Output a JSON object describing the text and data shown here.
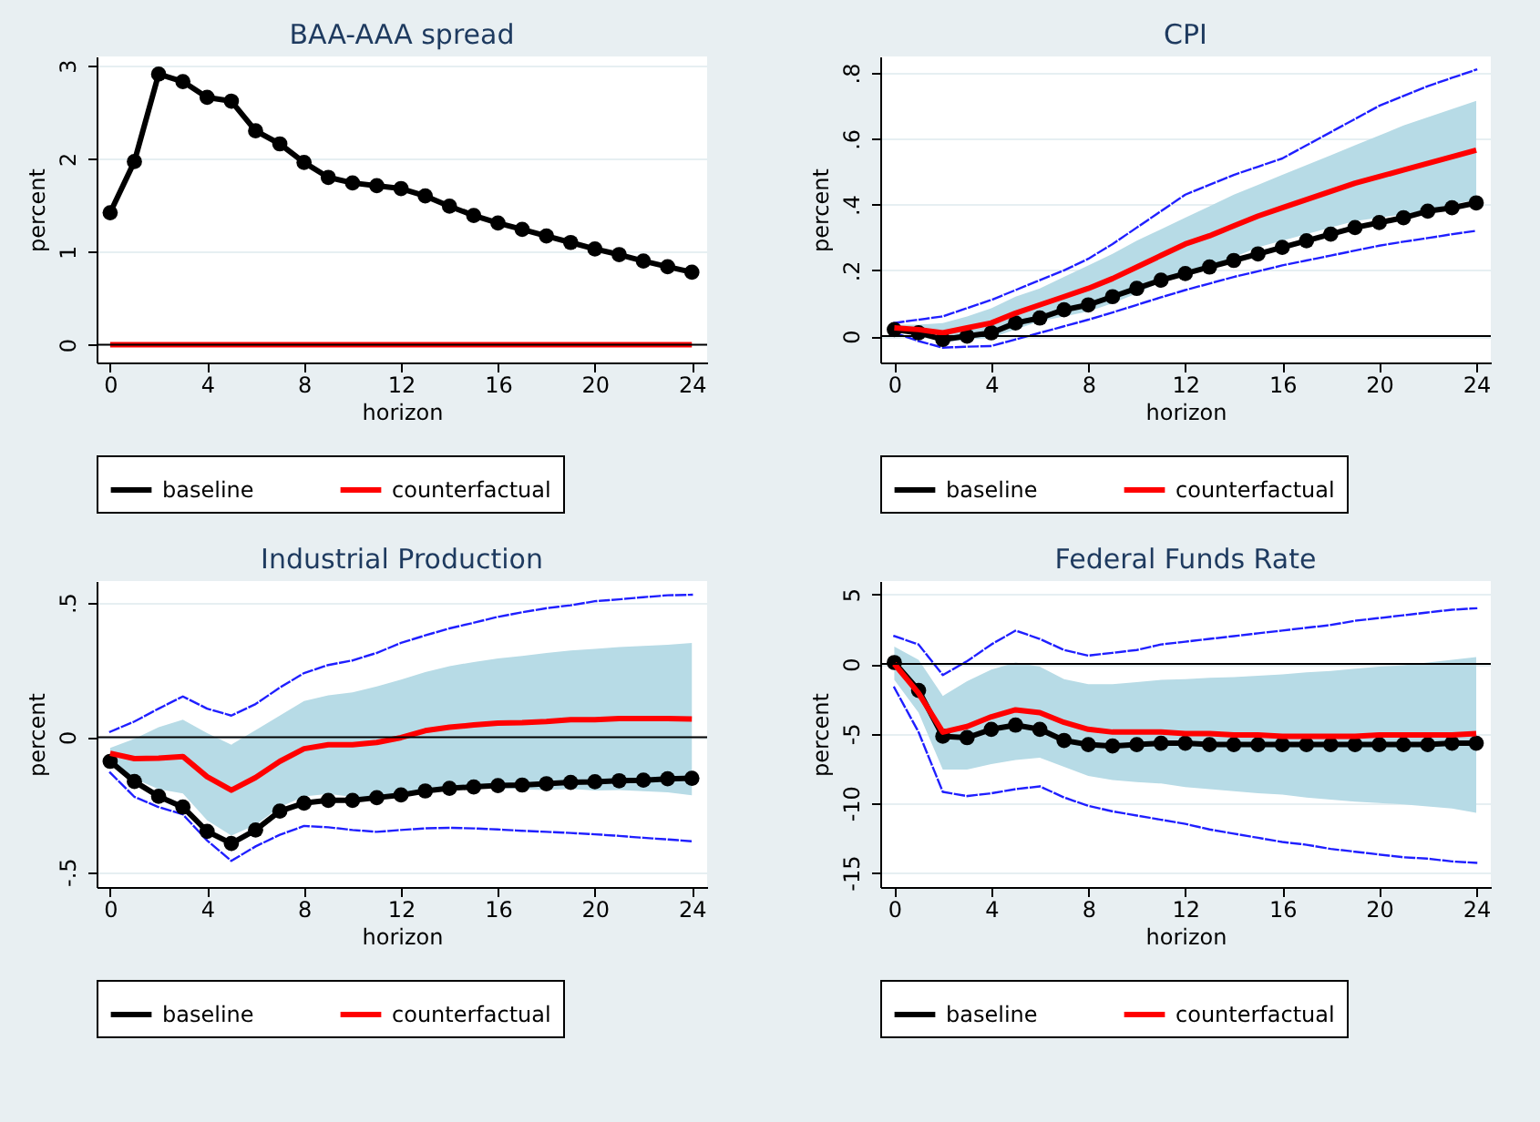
{
  "chart_data": [
    {
      "type": "line",
      "title": "BAA-AAA spread",
      "xlabel": "horizon",
      "ylabel": "percent",
      "x": [
        0,
        1,
        2,
        3,
        4,
        5,
        6,
        7,
        8,
        9,
        10,
        11,
        12,
        13,
        14,
        15,
        16,
        17,
        18,
        19,
        20,
        21,
        22,
        23,
        24
      ],
      "series": [
        {
          "name": "baseline",
          "color": "#000000",
          "marker": "circle",
          "values": [
            1.42,
            1.97,
            2.91,
            2.83,
            2.66,
            2.62,
            2.3,
            2.16,
            1.96,
            1.8,
            1.74,
            1.71,
            1.68,
            1.6,
            1.49,
            1.39,
            1.31,
            1.24,
            1.17,
            1.1,
            1.03,
            0.97,
            0.9,
            0.84,
            0.78
          ]
        },
        {
          "name": "counterfactual",
          "color": "#ff0000",
          "values": [
            0,
            0,
            0,
            0,
            0,
            0,
            0,
            0,
            0,
            0,
            0,
            0,
            0,
            0,
            0,
            0,
            0,
            0,
            0,
            0,
            0,
            0,
            0,
            0,
            0
          ]
        }
      ],
      "xlim": [
        -0.56,
        24.63
      ],
      "xticks": [
        0,
        4,
        8,
        12,
        16,
        20,
        24
      ],
      "ylim": [
        -0.19,
        3.1
      ],
      "yticks": [
        0,
        1,
        2,
        3
      ],
      "ref_lines": [
        {
          "axis": "y",
          "value": 0,
          "color": "#000000"
        }
      ],
      "grid": "y",
      "legend": "bottom"
    },
    {
      "type": "line",
      "title": "CPI",
      "xlabel": "horizon",
      "ylabel": "percent",
      "x": [
        0,
        1,
        2,
        3,
        4,
        5,
        6,
        7,
        8,
        9,
        10,
        11,
        12,
        13,
        14,
        15,
        16,
        17,
        18,
        19,
        20,
        21,
        22,
        23,
        24
      ],
      "series": [
        {
          "color": "#1f1fff",
          "line_style": "dashed",
          "values": [
            0.04,
            0.05,
            0.06,
            0.085,
            0.11,
            0.14,
            0.17,
            0.2,
            0.235,
            0.28,
            0.33,
            0.38,
            0.43,
            0.46,
            0.49,
            0.515,
            0.54,
            0.58,
            0.62,
            0.66,
            0.7,
            0.73,
            0.76,
            0.785,
            0.81
          ]
        },
        {
          "color": "#1f1fff",
          "line_style": "dashed",
          "values": [
            0.01,
            -0.015,
            -0.035,
            -0.032,
            -0.03,
            -0.01,
            0.01,
            0.03,
            0.05,
            0.072,
            0.095,
            0.118,
            0.14,
            0.16,
            0.18,
            0.197,
            0.215,
            0.23,
            0.245,
            0.26,
            0.275,
            0.287,
            0.298,
            0.31,
            0.32
          ]
        },
        {
          "name": "baseline",
          "color": "#000000",
          "marker": "circle",
          "values": [
            0.02,
            0.01,
            -0.01,
            0.0,
            0.01,
            0.04,
            0.055,
            0.08,
            0.095,
            0.12,
            0.145,
            0.17,
            0.19,
            0.21,
            0.23,
            0.25,
            0.27,
            0.29,
            0.31,
            0.33,
            0.345,
            0.36,
            0.38,
            0.39,
            0.405
          ]
        },
        {
          "name": "counterfactual",
          "color": "#ff0000",
          "values": [
            0.025,
            0.02,
            0.01,
            0.025,
            0.04,
            0.07,
            0.095,
            0.12,
            0.145,
            0.175,
            0.21,
            0.245,
            0.28,
            0.305,
            0.335,
            0.365,
            0.39,
            0.415,
            0.44,
            0.465,
            0.485,
            0.505,
            0.525,
            0.545,
            0.565
          ],
          "lower": [
            0.015,
            0.005,
            -0.02,
            -0.01,
            -0.005,
            0.02,
            0.045,
            0.06,
            0.075,
            0.1,
            0.13,
            0.165,
            0.2,
            0.215,
            0.24,
            0.27,
            0.29,
            0.31,
            0.33,
            0.35,
            0.36,
            0.37,
            0.385,
            0.4,
            0.415
          ],
          "upper": [
            0.035,
            0.035,
            0.04,
            0.06,
            0.085,
            0.12,
            0.145,
            0.18,
            0.215,
            0.25,
            0.29,
            0.325,
            0.36,
            0.395,
            0.43,
            0.46,
            0.49,
            0.52,
            0.55,
            0.58,
            0.61,
            0.64,
            0.665,
            0.69,
            0.715
          ]
        }
      ],
      "xlim": [
        -0.58,
        24.6
      ],
      "xticks": [
        0,
        4,
        8,
        12,
        16,
        20,
        24
      ],
      "ylim": [
        -0.08,
        0.85
      ],
      "yticks": [
        0,
        {
          "value": 0.2,
          "label": ".2"
        },
        {
          "value": 0.4,
          "label": ".4"
        },
        {
          "value": 0.6,
          "label": ".6"
        },
        {
          "value": 0.8,
          "label": ".8"
        }
      ],
      "ref_lines": [
        {
          "axis": "y",
          "value": 0,
          "color": "#000000"
        }
      ],
      "grid": "y",
      "legend": "bottom"
    },
    {
      "type": "line",
      "title": "Industrial Production",
      "xlabel": "horizon",
      "ylabel": "percent",
      "x": [
        0,
        1,
        2,
        3,
        4,
        5,
        6,
        7,
        8,
        9,
        10,
        11,
        12,
        13,
        14,
        15,
        16,
        17,
        18,
        19,
        20,
        21,
        22,
        23,
        24
      ],
      "series": [
        {
          "color": "#1f1fff",
          "line_style": "dashed",
          "values": [
            0.02,
            0.058,
            0.106,
            0.151,
            0.106,
            0.08,
            0.123,
            0.184,
            0.238,
            0.268,
            0.285,
            0.313,
            0.35,
            0.378,
            0.404,
            0.425,
            0.447,
            0.464,
            0.479,
            0.49,
            0.505,
            0.512,
            0.52,
            0.527,
            0.529
          ]
        },
        {
          "color": "#1f1fff",
          "line_style": "dashed",
          "values": [
            -0.132,
            -0.222,
            -0.26,
            -0.287,
            -0.384,
            -0.46,
            -0.406,
            -0.363,
            -0.33,
            -0.335,
            -0.345,
            -0.352,
            -0.345,
            -0.339,
            -0.337,
            -0.339,
            -0.343,
            -0.348,
            -0.352,
            -0.356,
            -0.361,
            -0.367,
            -0.374,
            -0.38,
            -0.387
          ]
        },
        {
          "name": "baseline",
          "color": "#000000",
          "marker": "circle",
          "values": [
            -0.09,
            -0.165,
            -0.22,
            -0.26,
            -0.35,
            -0.395,
            -0.345,
            -0.275,
            -0.245,
            -0.235,
            -0.235,
            -0.225,
            -0.215,
            -0.2,
            -0.19,
            -0.185,
            -0.18,
            -0.178,
            -0.173,
            -0.168,
            -0.166,
            -0.162,
            -0.16,
            -0.155,
            -0.153
          ]
        },
        {
          "name": "counterfactual",
          "color": "#ff0000",
          "values": [
            -0.06,
            -0.08,
            -0.078,
            -0.072,
            -0.147,
            -0.197,
            -0.15,
            -0.09,
            -0.043,
            -0.028,
            -0.028,
            -0.02,
            -0.002,
            0.024,
            0.037,
            0.045,
            0.052,
            0.054,
            0.058,
            0.065,
            0.065,
            0.069,
            0.069,
            0.069,
            0.067
          ],
          "lower": [
            -0.08,
            -0.154,
            -0.193,
            -0.209,
            -0.309,
            -0.366,
            -0.326,
            -0.26,
            -0.22,
            -0.211,
            -0.222,
            -0.228,
            -0.218,
            -0.194,
            -0.19,
            -0.189,
            -0.188,
            -0.194,
            -0.197,
            -0.192,
            -0.198,
            -0.197,
            -0.201,
            -0.205,
            -0.216
          ],
          "upper": [
            -0.04,
            -0.006,
            0.037,
            0.065,
            0.015,
            -0.028,
            0.026,
            0.08,
            0.134,
            0.155,
            0.166,
            0.188,
            0.214,
            0.242,
            0.264,
            0.279,
            0.292,
            0.302,
            0.313,
            0.322,
            0.328,
            0.335,
            0.339,
            0.343,
            0.35
          ]
        }
      ],
      "xlim": [
        -0.56,
        24.63
      ],
      "xticks": [
        0,
        4,
        8,
        12,
        16,
        20,
        24
      ],
      "ylim": [
        -0.557,
        0.58
      ],
      "yticks": [
        {
          "value": -0.5,
          "label": "-.5"
        },
        0,
        {
          "value": 0.5,
          "label": ".5"
        }
      ],
      "ref_lines": [
        {
          "axis": "y",
          "value": 0,
          "color": "#000000"
        }
      ],
      "grid": "y",
      "legend": "bottom"
    },
    {
      "type": "line",
      "title": "Federal Funds Rate",
      "xlabel": "horizon",
      "ylabel": "percent",
      "x": [
        0,
        1,
        2,
        3,
        4,
        5,
        6,
        7,
        8,
        9,
        10,
        11,
        12,
        13,
        14,
        15,
        16,
        17,
        18,
        19,
        20,
        21,
        22,
        23,
        24
      ],
      "series": [
        {
          "color": "#1f1fff",
          "line_style": "dashed",
          "values": [
            2.0,
            1.4,
            -0.8,
            0.2,
            1.4,
            2.4,
            1.8,
            1.0,
            0.6,
            0.8,
            1.0,
            1.4,
            1.6,
            1.8,
            2.0,
            2.2,
            2.4,
            2.6,
            2.8,
            3.1,
            3.3,
            3.5,
            3.7,
            3.9,
            4.0
          ]
        },
        {
          "color": "#1f1fff",
          "line_style": "dashed",
          "values": [
            -1.7,
            -4.9,
            -9.2,
            -9.5,
            -9.3,
            -9.0,
            -8.8,
            -9.6,
            -10.2,
            -10.6,
            -10.9,
            -11.2,
            -11.5,
            -11.9,
            -12.2,
            -12.5,
            -12.8,
            -13.0,
            -13.3,
            -13.5,
            -13.7,
            -13.9,
            -14.0,
            -14.2,
            -14.3
          ]
        },
        {
          "name": "baseline",
          "color": "#000000",
          "marker": "circle",
          "values": [
            0.1,
            -1.9,
            -5.2,
            -5.3,
            -4.7,
            -4.4,
            -4.7,
            -5.5,
            -5.8,
            -5.9,
            -5.8,
            -5.7,
            -5.7,
            -5.8,
            -5.8,
            -5.8,
            -5.8,
            -5.8,
            -5.8,
            -5.8,
            -5.8,
            -5.8,
            -5.8,
            -5.7,
            -5.7
          ]
        },
        {
          "name": "counterfactual",
          "color": "#ff0000",
          "values": [
            0,
            -2.1,
            -4.9,
            -4.5,
            -3.8,
            -3.3,
            -3.5,
            -4.2,
            -4.7,
            -4.9,
            -4.9,
            -4.9,
            -5.0,
            -5.0,
            -5.1,
            -5.1,
            -5.2,
            -5.2,
            -5.2,
            -5.2,
            -5.1,
            -5.1,
            -5.1,
            -5.1,
            -5.0
          ],
          "lower": [
            -1.15,
            -3.5,
            -7.6,
            -7.6,
            -7.2,
            -6.9,
            -6.75,
            -7.4,
            -8.05,
            -8.35,
            -8.5,
            -8.6,
            -8.85,
            -9.0,
            -9.15,
            -9.3,
            -9.4,
            -9.6,
            -9.75,
            -9.9,
            -10.0,
            -10.1,
            -10.25,
            -10.4,
            -10.7
          ],
          "upper": [
            1.25,
            0.3,
            -2.3,
            -1.25,
            -0.4,
            0.1,
            -0.2,
            -1.1,
            -1.45,
            -1.45,
            -1.3,
            -1.15,
            -1.1,
            -1.0,
            -0.95,
            -0.85,
            -0.75,
            -0.6,
            -0.5,
            -0.35,
            -0.2,
            -0.1,
            0.1,
            0.3,
            0.5
          ]
        }
      ],
      "xlim": [
        -0.58,
        24.6
      ],
      "xticks": [
        0,
        4,
        8,
        12,
        16,
        20,
        24
      ],
      "ylim": [
        -16.04,
        5.96
      ],
      "yticks": [
        -15,
        -10,
        -5,
        0,
        5
      ],
      "ref_lines": [
        {
          "axis": "y",
          "value": 0,
          "color": "#000000"
        }
      ],
      "grid": "y",
      "legend": "bottom"
    }
  ]
}
